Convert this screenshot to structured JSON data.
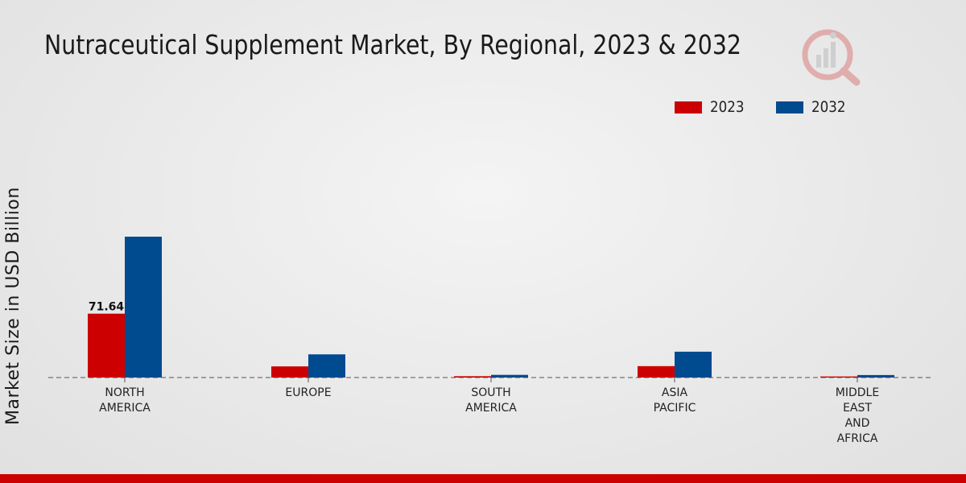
{
  "chart_data": {
    "type": "bar",
    "title": "Nutraceutical Supplement Market, By Regional, 2023 & 2032",
    "xlabel": "",
    "ylabel": "Market Size in USD Billion",
    "categories": [
      [
        "NORTH",
        "AMERICA"
      ],
      [
        "EUROPE"
      ],
      [
        "SOUTH",
        "AMERICA"
      ],
      [
        "ASIA",
        "PACIFIC"
      ],
      [
        "MIDDLE",
        "EAST",
        "AND",
        "AFRICA"
      ]
    ],
    "series": [
      {
        "name": "2023",
        "color": "#cc0000",
        "values": [
          71.64,
          12.5,
          1.5,
          12.8,
          1.2
        ]
      },
      {
        "name": "2032",
        "color": "#004a8f",
        "values": [
          158.0,
          26.0,
          3.0,
          29.0,
          2.8
        ]
      }
    ],
    "data_labels": [
      {
        "series": 0,
        "index": 0,
        "text": "71.64"
      }
    ],
    "ylim": [
      0,
      160
    ],
    "grid": false,
    "legend": "top-right"
  },
  "legend": {
    "items": [
      {
        "label": "2023",
        "color": "#cc0000"
      },
      {
        "label": "2032",
        "color": "#004a8f"
      }
    ]
  },
  "logo": {
    "icon": "market-research-logo-icon"
  },
  "colors": {
    "accent_bar": "#cc0000"
  }
}
